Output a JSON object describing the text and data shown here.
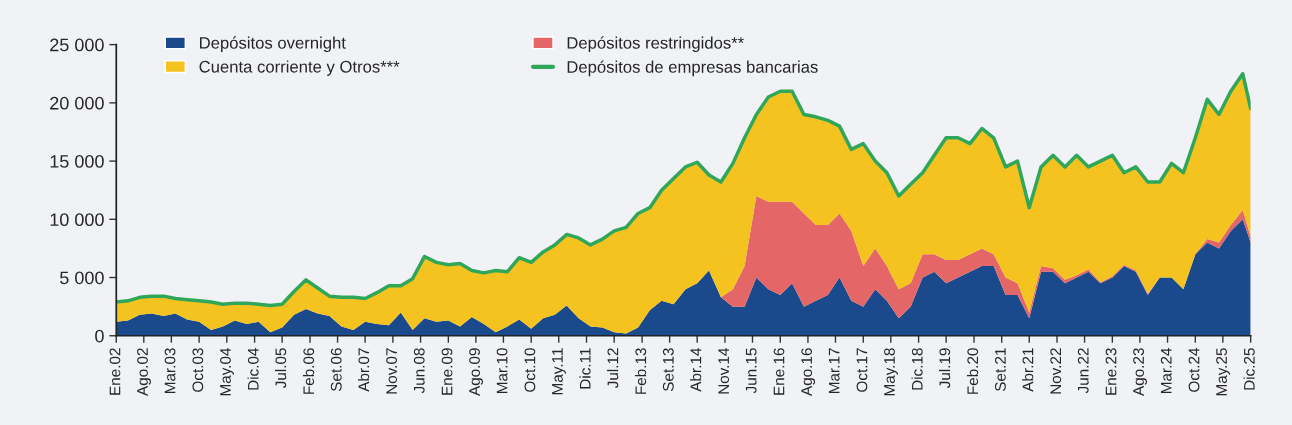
{
  "chart_data": {
    "type": "area",
    "stacked": true,
    "legend": "top left",
    "x": [
      "2002-01",
      "2002-04",
      "2002-07",
      "2002-10",
      "2003-01",
      "2003-04",
      "2003-07",
      "2003-10",
      "2004-01",
      "2004-04",
      "2004-07",
      "2004-10",
      "2005-01",
      "2005-04",
      "2005-07",
      "2005-10",
      "2006-01",
      "2006-04",
      "2006-07",
      "2006-10",
      "2007-01",
      "2007-04",
      "2007-07",
      "2007-10",
      "2008-01",
      "2008-04",
      "2008-07",
      "2008-10",
      "2009-01",
      "2009-04",
      "2009-07",
      "2009-10",
      "2010-01",
      "2010-04",
      "2010-07",
      "2010-10",
      "2011-01",
      "2011-04",
      "2011-07",
      "2011-10",
      "2012-01",
      "2012-04",
      "2012-07",
      "2012-10",
      "2013-01",
      "2013-04",
      "2013-07",
      "2013-10",
      "2014-01",
      "2014-04",
      "2014-07",
      "2014-10",
      "2015-01",
      "2015-04",
      "2015-07",
      "2015-10",
      "2016-01",
      "2016-04",
      "2016-07",
      "2016-10",
      "2017-01",
      "2017-04",
      "2017-07",
      "2017-10",
      "2018-01",
      "2018-04",
      "2018-07",
      "2018-10",
      "2019-01",
      "2019-04",
      "2019-07",
      "2019-10",
      "2020-01",
      "2020-04",
      "2020-07",
      "2020-10",
      "2021-01",
      "2021-04",
      "2021-07",
      "2021-10",
      "2022-01",
      "2022-04",
      "2022-07",
      "2022-10",
      "2023-01",
      "2023-04",
      "2023-07",
      "2023-10",
      "2024-01",
      "2024-04",
      "2024-07",
      "2024-10",
      "2025-01",
      "2025-04",
      "2025-07",
      "2025-10",
      "2025-12"
    ],
    "series": [
      {
        "name": "Depósitos overnight",
        "color": "#1b4a8c",
        "values": [
          1200,
          1300,
          1800,
          1900,
          1700,
          1900,
          1400,
          1200,
          500,
          800,
          1300,
          1000,
          1200,
          300,
          700,
          1800,
          2300,
          1900,
          1700,
          800,
          500,
          1200,
          1000,
          900,
          2000,
          500,
          1500,
          1200,
          1300,
          800,
          1600,
          1000,
          300,
          800,
          1400,
          600,
          1500,
          1800,
          2600,
          1500,
          800,
          700,
          300,
          200,
          700,
          2200,
          3000,
          2700,
          4000,
          4500,
          5600,
          3300,
          2500,
          2500,
          5000,
          4000,
          3500,
          4500,
          2500,
          3000,
          3500,
          5000,
          3000,
          2500,
          4000,
          3000,
          1500,
          2500,
          5000,
          5500,
          4500,
          5000,
          5500,
          6000,
          6000,
          3500,
          3500,
          1500,
          5500,
          5500,
          4500,
          5000,
          5500,
          4500,
          5000,
          6000,
          5500,
          3500,
          5000,
          5000,
          4000,
          7000,
          8000,
          7500,
          9000,
          10000,
          8000
        ]
      },
      {
        "name": "Depósitos restringidos**",
        "color": "#e56666",
        "values": [
          0,
          0,
          0,
          0,
          0,
          0,
          0,
          0,
          0,
          0,
          0,
          0,
          0,
          0,
          0,
          0,
          0,
          0,
          0,
          0,
          0,
          0,
          0,
          0,
          0,
          0,
          0,
          0,
          0,
          0,
          0,
          0,
          0,
          0,
          0,
          0,
          0,
          0,
          0,
          0,
          0,
          0,
          0,
          0,
          0,
          0,
          0,
          0,
          0,
          0,
          0,
          0,
          1500,
          3500,
          7000,
          7500,
          8000,
          7000,
          8000,
          6500,
          6000,
          5500,
          6000,
          3500,
          3500,
          3000,
          2500,
          2000,
          2000,
          1500,
          2000,
          1500,
          1500,
          1500,
          1000,
          1500,
          1000,
          500,
          500,
          300,
          300,
          200,
          200,
          100,
          100,
          100,
          100,
          100,
          0,
          0,
          0,
          0,
          300,
          500,
          500,
          800,
          500
        ]
      },
      {
        "name": "Cuenta corriente y Otros***",
        "color": "#f4c31f",
        "values": [
          1700,
          1700,
          1500,
          1500,
          1700,
          1300,
          1700,
          1800,
          2400,
          1900,
          1500,
          1800,
          1500,
          2300,
          2000,
          2000,
          2500,
          2200,
          1700,
          2500,
          2800,
          2000,
          2700,
          3400,
          2300,
          4400,
          5300,
          5100,
          4800,
          5400,
          4000,
          4400,
          5300,
          4700,
          5300,
          5700,
          5700,
          6000,
          6100,
          6900,
          7000,
          7600,
          8700,
          9100,
          9800,
          8800,
          9500,
          10800,
          10500,
          10400,
          8200,
          9900,
          10800,
          11000,
          7000,
          9000,
          9500,
          9500,
          8500,
          9300,
          9000,
          7500,
          7000,
          10500,
          7500,
          8000,
          8000,
          8500,
          7000,
          8500,
          10500,
          10500,
          9500,
          10300,
          10000,
          9500,
          10500,
          9000,
          8500,
          9700,
          9700,
          10300,
          8800,
          10400,
          10400,
          7900,
          8900,
          9600,
          8200,
          9800,
          10000,
          10000,
          12000,
          11000,
          11500,
          11700,
          11000
        ]
      },
      {
        "name": "Depósitos de empresas bancarias",
        "type": "line",
        "color": "#2fa65a",
        "values": [
          2900,
          3000,
          3300,
          3400,
          3400,
          3200,
          3100,
          3000,
          2900,
          2700,
          2800,
          2800,
          2700,
          2600,
          2700,
          3800,
          4800,
          4100,
          3400,
          3300,
          3300,
          3200,
          3700,
          4300,
          4300,
          4900,
          6800,
          6300,
          6100,
          6200,
          5600,
          5400,
          5600,
          5500,
          6700,
          6300,
          7200,
          7800,
          8700,
          8400,
          7800,
          8300,
          9000,
          9300,
          10500,
          11000,
          12500,
          13500,
          14500,
          14900,
          13800,
          13200,
          14800,
          17000,
          19000,
          20500,
          21000,
          21000,
          19000,
          18800,
          18500,
          18000,
          16000,
          16500,
          15000,
          14000,
          12000,
          13000,
          14000,
          15500,
          17000,
          17000,
          16500,
          17800,
          17000,
          14500,
          15000,
          11000,
          14500,
          15500,
          14500,
          15500,
          14500,
          15000,
          15500,
          14000,
          14500,
          13200,
          13200,
          14800,
          14000,
          17000,
          20300,
          19000,
          21000,
          22500,
          19500
        ]
      }
    ],
    "xlim": [
      "2002-01",
      "2025-12"
    ],
    "xticks": [
      {
        "value": "2002-01",
        "label": "Ene.02"
      },
      {
        "value": "2002-08",
        "label": "Ago.02"
      },
      {
        "value": "2003-03",
        "label": "Mar.03"
      },
      {
        "value": "2003-10",
        "label": "Oct.03"
      },
      {
        "value": "2004-05",
        "label": "May.04"
      },
      {
        "value": "2004-12",
        "label": "Dic.04"
      },
      {
        "value": "2005-07",
        "label": "Jul.05"
      },
      {
        "value": "2006-02",
        "label": "Feb.06"
      },
      {
        "value": "2006-09",
        "label": "Set.06"
      },
      {
        "value": "2007-04",
        "label": "Abr.07"
      },
      {
        "value": "2007-11",
        "label": "Nov.07"
      },
      {
        "value": "2008-06",
        "label": "Jun.08"
      },
      {
        "value": "2009-01",
        "label": "Ene.09"
      },
      {
        "value": "2009-08",
        "label": "Ago.09"
      },
      {
        "value": "2010-03",
        "label": "Mar.10"
      },
      {
        "value": "2010-10",
        "label": "Oct.10"
      },
      {
        "value": "2011-05",
        "label": "May.11"
      },
      {
        "value": "2011-12",
        "label": "Dic.11"
      },
      {
        "value": "2012-07",
        "label": "Jul.12"
      },
      {
        "value": "2013-02",
        "label": "Feb.13"
      },
      {
        "value": "2013-09",
        "label": "Set.13"
      },
      {
        "value": "2014-04",
        "label": "Abr.14"
      },
      {
        "value": "2014-11",
        "label": "Nov.14"
      },
      {
        "value": "2015-06",
        "label": "Jun.15"
      },
      {
        "value": "2016-01",
        "label": "Ene.16"
      },
      {
        "value": "2016-08",
        "label": "Ago.16"
      },
      {
        "value": "2017-03",
        "label": "Mar.17"
      },
      {
        "value": "2017-10",
        "label": "Oct.17"
      },
      {
        "value": "2018-05",
        "label": "May.18"
      },
      {
        "value": "2018-12",
        "label": "Dic.18"
      },
      {
        "value": "2019-07",
        "label": "Jul.19"
      },
      {
        "value": "2020-02",
        "label": "Feb.20"
      },
      {
        "value": "2020-09",
        "label": "Set.21"
      },
      {
        "value": "2021-04",
        "label": "Abr.21"
      },
      {
        "value": "2021-11",
        "label": "Nov.22"
      },
      {
        "value": "2022-06",
        "label": "Jun.22"
      },
      {
        "value": "2023-01",
        "label": "Ene.23"
      },
      {
        "value": "2023-08",
        "label": "Ago.23"
      },
      {
        "value": "2024-03",
        "label": "Mar.24"
      },
      {
        "value": "2024-10",
        "label": "Oct.24"
      },
      {
        "value": "2025-05",
        "label": "May.25"
      },
      {
        "value": "2025-12",
        "label": "Dic.25"
      }
    ],
    "ylim": [
      0,
      25000
    ],
    "yticks": [
      0,
      {
        "value": 5000,
        "label": "5 000"
      },
      {
        "value": 10000,
        "label": "10 000"
      },
      {
        "value": 15000,
        "label": "15 000"
      },
      {
        "value": 20000,
        "label": "20 000"
      },
      {
        "value": 25000,
        "label": "25 000"
      }
    ]
  }
}
